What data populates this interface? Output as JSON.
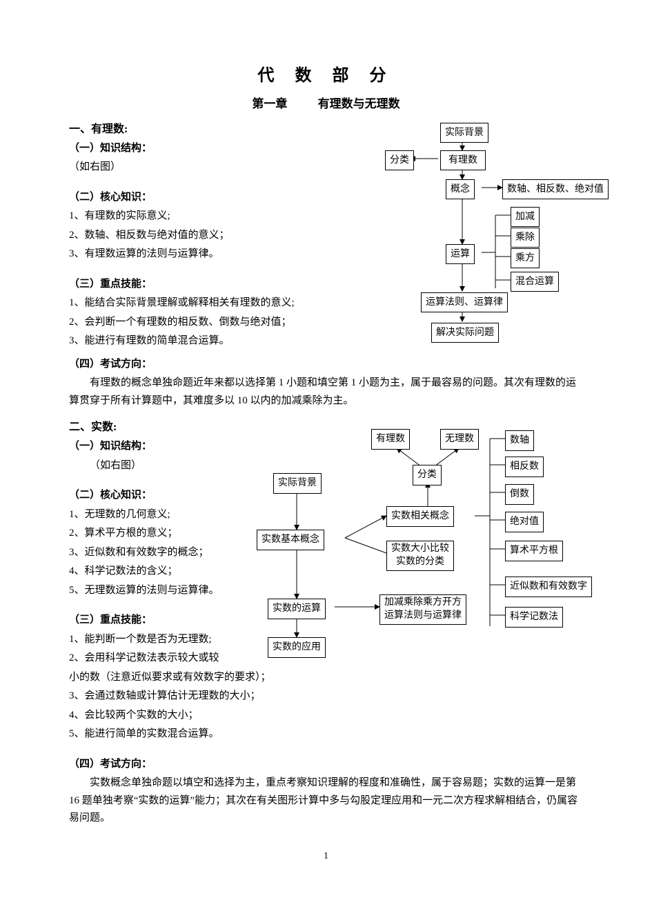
{
  "title": "代 数 部 分",
  "chapter": {
    "num": "第一章",
    "name": "有理数与无理数"
  },
  "pageNumber": "1",
  "s1": {
    "heading": "一、有理数:",
    "h1": "（一）知识结构：",
    "h1note": "（如右图）",
    "h2": "（二）核心知识：",
    "h2items": [
      "1、有理数的实际意义;",
      "2、数轴、相反数与绝对值的意义；",
      "3、有理数运算的法则与运算律。"
    ],
    "h3": "（三）重点技能：",
    "h3items": [
      "1、能结合实际背景理解或解释相关有理数的意义;",
      "2、会判断一个有理数的相反数、倒数与绝对值；",
      "3、能进行有理数的简单混合运算。"
    ],
    "h4": "（四）考试方向：",
    "h4text": "有理数的概念单独命题近年来都以选择第 1 小题和填空第 1 小题为主，属于最容易的问题。其次有理数的运算贯穿于所有计算题中，其难度多以 10 以内的加减乘除为主。"
  },
  "s2": {
    "heading": "二、实数:",
    "h1": "（一）知识结构：",
    "h1note": "（如右图）",
    "h2": "（二）核心知识：",
    "h2items": [
      "1、无理数的几何意义;",
      "2、算术平方根的意义；",
      "3、近似数和有效数字的概念；",
      "4、科学记数法的含义；",
      "5、无理数运算的法则与运算律。"
    ],
    "h3": "（三）重点技能：",
    "h3items": [
      "1、能判断一个数是否为无理数;",
      "2、会用科学记数法表示较大或较",
      "小的数（注意近似要求或有效数字的要求）；",
      "3、会通过数轴或计算估计无理数的大小；",
      "4、会比较两个实数的大小；",
      "5、能进行简单的实数混合运算。"
    ],
    "h4": "（四）考试方向：",
    "h4text": "实数概念单独命题以填空和选择为主，重点考察知识理解的程度和准确性，属于容易题；实数的运算一是第 16 题单独考察“实数的运算”能力；其次在有关图形计算中多与勾股定理应用和一元二次方程求解相结合，仍属容易问题。"
  },
  "d1": {
    "n1": "实际背景",
    "n2": "分类",
    "n3": "有理数",
    "n4": "概念",
    "n5": "数轴、相反数、绝对值",
    "n6": "运算",
    "n7": "加减",
    "n8": "乘除",
    "n9": "乘方",
    "n10": "混合运算",
    "n11": "运算法则、运算律",
    "n12": "解决实际问题"
  },
  "d2": {
    "n1": "有理数",
    "n2": "无理数",
    "n3": "实际背景",
    "n4": "分类",
    "n5": "实数相关概念",
    "n6": "实数基本概念",
    "n7": "实数大小比较\n实数的分类",
    "n8": "实数的运算",
    "n9": "加减乘除乘方开方\n运算法则与运算律",
    "n10": "实数的应用",
    "r1": "数轴",
    "r2": "相反数",
    "r3": "倒数",
    "r4": "绝对值",
    "r5": "算术平方根",
    "r6": "近似数和有效数字",
    "r7": "科学记数法"
  },
  "style": {
    "node_border": "#000000",
    "node_bg": "#ffffff",
    "edge_color": "#000000",
    "text_color": "#000000",
    "page_bg": "#ffffff",
    "body_fontsize": 15,
    "title_fontsize": 24,
    "diagram_fontsize": 14
  }
}
